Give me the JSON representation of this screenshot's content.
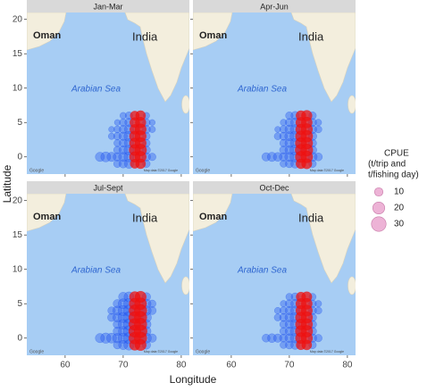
{
  "chart_data": {
    "type": "bubble",
    "x_label": "Longitude",
    "y_label": "Latitude",
    "xlim": [
      53.4,
      81.4
    ],
    "ylim": [
      -2.5,
      21
    ],
    "xticks": [
      60,
      70,
      80
    ],
    "yticks": [
      0,
      5,
      10,
      15,
      20
    ],
    "map_labels": {
      "oman": "Oman",
      "india": "India",
      "sea": "Arabian Sea",
      "credit": "Map data ©2017 Google",
      "logo": "Google"
    },
    "panels": [
      {
        "title": "Jan-Mar",
        "series": [
          {
            "color": "#2255ee",
            "lon": [
              70,
              71,
              74,
              69,
              70,
              71,
              74,
              75,
              68,
              69,
              70,
              71,
              74,
              75,
              68,
              69,
              70,
              71,
              74,
              69,
              70,
              71,
              74,
              69,
              70,
              71,
              74,
              66,
              67,
              68,
              69,
              70,
              71,
              74,
              75,
              69,
              70,
              71,
              74
            ],
            "lat": [
              6,
              6,
              6,
              5,
              5,
              5,
              5,
              5,
              4,
              4,
              4,
              4,
              4,
              4,
              3,
              3,
              3,
              3,
              3,
              2,
              2,
              2,
              2,
              1,
              1,
              1,
              1,
              0,
              0,
              0,
              0,
              0,
              0,
              0,
              0,
              -1,
              -1,
              -1,
              -1
            ],
            "cpue": [
              6,
              8,
              6,
              5,
              8,
              10,
              8,
              5,
              5,
              7,
              9,
              12,
              9,
              6,
              6,
              8,
              10,
              14,
              8,
              7,
              9,
              12,
              8,
              8,
              10,
              14,
              9,
              12,
              14,
              12,
              10,
              12,
              14,
              10,
              8,
              8,
              10,
              12,
              8
            ]
          },
          {
            "color": "#ee1111",
            "lon": [
              72,
              73,
              72,
              73,
              72,
              73,
              72,
              73,
              72,
              73,
              72,
              73,
              72,
              73,
              72,
              73
            ],
            "lat": [
              6,
              6,
              5,
              5,
              4,
              4,
              3,
              3,
              2,
              2,
              1,
              1,
              0,
              0,
              -1,
              -1
            ],
            "cpue": [
              12,
              14,
              14,
              16,
              14,
              18,
              16,
              18,
              16,
              18,
              18,
              20,
              16,
              18,
              12,
              14
            ]
          }
        ]
      },
      {
        "title": "Apr-Jun",
        "series": [
          {
            "color": "#2255ee",
            "lon": [
              70,
              71,
              74,
              69,
              70,
              71,
              74,
              75,
              68,
              69,
              70,
              71,
              74,
              75,
              68,
              69,
              70,
              71,
              74,
              69,
              70,
              71,
              74,
              69,
              70,
              71,
              74,
              66,
              67,
              68,
              69,
              70,
              71,
              74,
              75,
              69,
              70,
              71,
              74
            ],
            "lat": [
              6,
              6,
              6,
              5,
              5,
              5,
              5,
              5,
              4,
              4,
              4,
              4,
              4,
              4,
              3,
              3,
              3,
              3,
              3,
              2,
              2,
              2,
              2,
              1,
              1,
              1,
              1,
              0,
              0,
              0,
              0,
              0,
              0,
              0,
              0,
              -1,
              -1,
              -1,
              -1
            ],
            "cpue": [
              8,
              10,
              8,
              6,
              9,
              12,
              9,
              6,
              5,
              8,
              11,
              13,
              10,
              7,
              7,
              9,
              12,
              15,
              10,
              8,
              11,
              13,
              9,
              9,
              11,
              15,
              10,
              10,
              12,
              11,
              10,
              12,
              15,
              12,
              9,
              7,
              9,
              11,
              8
            ]
          },
          {
            "color": "#ee1111",
            "lon": [
              72,
              73,
              72,
              73,
              72,
              73,
              72,
              73,
              72,
              73,
              72,
              73,
              72,
              73,
              72,
              73
            ],
            "lat": [
              6,
              6,
              5,
              5,
              4,
              4,
              3,
              3,
              2,
              2,
              1,
              1,
              0,
              0,
              -1,
              -1
            ],
            "cpue": [
              14,
              16,
              15,
              17,
              16,
              19,
              17,
              20,
              18,
              20,
              19,
              21,
              18,
              20,
              14,
              15
            ]
          }
        ]
      },
      {
        "title": "Jul-Sept",
        "series": [
          {
            "color": "#2255ee",
            "lon": [
              70,
              71,
              74,
              69,
              70,
              71,
              74,
              75,
              68,
              69,
              70,
              71,
              74,
              75,
              68,
              69,
              70,
              71,
              74,
              69,
              70,
              71,
              74,
              69,
              70,
              71,
              74,
              66,
              67,
              68,
              69,
              70,
              71,
              74,
              75,
              69,
              70,
              71,
              74
            ],
            "lat": [
              6,
              6,
              6,
              5,
              5,
              5,
              5,
              5,
              4,
              4,
              4,
              4,
              4,
              4,
              3,
              3,
              3,
              3,
              3,
              2,
              2,
              2,
              2,
              1,
              1,
              1,
              1,
              0,
              0,
              0,
              0,
              0,
              0,
              0,
              0,
              -1,
              -1,
              -1,
              -1
            ],
            "cpue": [
              12,
              14,
              10,
              10,
              14,
              16,
              12,
              8,
              8,
              12,
              15,
              18,
              13,
              9,
              9,
              12,
              15,
              20,
              14,
              10,
              14,
              18,
              12,
              10,
              13,
              18,
              12,
              12,
              15,
              14,
              13,
              15,
              18,
              14,
              10,
              9,
              12,
              15,
              10
            ]
          },
          {
            "color": "#ee1111",
            "lon": [
              72,
              73,
              72,
              73,
              72,
              73,
              72,
              73,
              72,
              73,
              72,
              73,
              72,
              73,
              72,
              73
            ],
            "lat": [
              6,
              6,
              5,
              5,
              4,
              4,
              3,
              3,
              2,
              2,
              1,
              1,
              0,
              0,
              -1,
              -1
            ],
            "cpue": [
              16,
              18,
              18,
              20,
              19,
              22,
              20,
              22,
              20,
              22,
              21,
              24,
              20,
              22,
              16,
              18
            ]
          }
        ]
      },
      {
        "title": "Oct-Dec",
        "series": [
          {
            "color": "#2255ee",
            "lon": [
              70,
              71,
              74,
              69,
              70,
              71,
              74,
              75,
              68,
              69,
              70,
              71,
              74,
              75,
              68,
              69,
              70,
              71,
              74,
              69,
              70,
              71,
              74,
              69,
              70,
              71,
              74,
              66,
              67,
              68,
              69,
              70,
              71,
              74,
              75,
              69,
              70,
              71,
              74
            ],
            "lat": [
              6,
              6,
              6,
              5,
              5,
              5,
              5,
              5,
              4,
              4,
              4,
              4,
              4,
              4,
              3,
              3,
              3,
              3,
              3,
              2,
              2,
              2,
              2,
              1,
              1,
              1,
              1,
              0,
              0,
              0,
              0,
              0,
              0,
              0,
              0,
              -1,
              -1,
              -1,
              -1
            ],
            "cpue": [
              7,
              9,
              7,
              6,
              9,
              11,
              8,
              6,
              6,
              8,
              10,
              12,
              9,
              7,
              7,
              9,
              11,
              14,
              9,
              8,
              10,
              13,
              9,
              8,
              10,
              13,
              9,
              9,
              11,
              10,
              9,
              11,
              13,
              10,
              8,
              7,
              9,
              11,
              8
            ]
          },
          {
            "color": "#ee1111",
            "lon": [
              72,
              73,
              72,
              73,
              72,
              73,
              72,
              73,
              72,
              73,
              72,
              73,
              72,
              73,
              72,
              73
            ],
            "lat": [
              6,
              6,
              5,
              5,
              4,
              4,
              3,
              3,
              2,
              2,
              1,
              1,
              0,
              0,
              -1,
              -1
            ],
            "cpue": [
              13,
              15,
              15,
              17,
              15,
              18,
              17,
              19,
              17,
              19,
              18,
              20,
              17,
              19,
              13,
              14
            ]
          }
        ]
      }
    ],
    "size_legend": {
      "title": [
        "CPUE",
        "(t/trip and",
        "t/fishing day)"
      ],
      "values": [
        10,
        20,
        30
      ],
      "color": "#e8a0cc"
    }
  }
}
